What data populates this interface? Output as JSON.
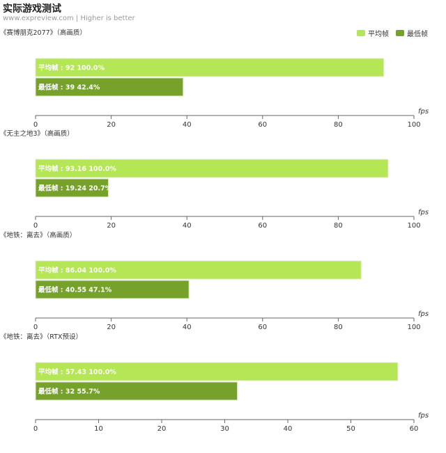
{
  "header": {
    "title": "实际游戏测试",
    "subtitle": "www.expreview.com | Higher is better"
  },
  "legend": [
    {
      "label": "平均帧",
      "color": "#b5e655"
    },
    {
      "label": "最低帧",
      "color": "#76a22c"
    }
  ],
  "axis_unit": "fps",
  "chart_data": [
    {
      "type": "bar",
      "title": "《赛博朋克2077》（高画质）",
      "xlabel": "fps",
      "xlim": [
        0,
        100
      ],
      "xticks": [
        0,
        20,
        40,
        60,
        80,
        100
      ],
      "bars": [
        {
          "name": "平均帧",
          "value": 92,
          "percent": "100.0%",
          "label": "平均帧 : 92  100.0%"
        },
        {
          "name": "最低帧",
          "value": 39,
          "percent": "42.4%",
          "label": "最低帧 : 39  42.4%"
        }
      ]
    },
    {
      "type": "bar",
      "title": "《无主之地3》（高画质）",
      "xlabel": "fps",
      "xlim": [
        0,
        100
      ],
      "xticks": [
        0,
        20,
        40,
        60,
        80,
        100
      ],
      "bars": [
        {
          "name": "平均帧",
          "value": 93.16,
          "percent": "100.0%",
          "label": "平均帧 : 93.16  100.0%"
        },
        {
          "name": "最低帧",
          "value": 19.24,
          "percent": "20.7%",
          "label": "最低帧 : 19.24  20.7%"
        }
      ]
    },
    {
      "type": "bar",
      "title": "《地铁：离去》（高画质）",
      "xlabel": "fps",
      "xlim": [
        0,
        100
      ],
      "xticks": [
        0,
        20,
        40,
        60,
        80,
        100
      ],
      "bars": [
        {
          "name": "平均帧",
          "value": 86.04,
          "percent": "100.0%",
          "label": "平均帧 : 86.04  100.0%"
        },
        {
          "name": "最低帧",
          "value": 40.55,
          "percent": "47.1%",
          "label": "最低帧 : 40.55  47.1%"
        }
      ]
    },
    {
      "type": "bar",
      "title": "《地铁：离去》（RTX预设）",
      "xlabel": "fps",
      "xlim": [
        0,
        60
      ],
      "xticks": [
        0,
        10,
        20,
        30,
        40,
        50,
        60
      ],
      "bars": [
        {
          "name": "平均帧",
          "value": 57.43,
          "percent": "100.0%",
          "label": "平均帧 : 57.43  100.0%"
        },
        {
          "name": "最低帧",
          "value": 32,
          "percent": "55.7%",
          "label": "最低帧 : 32  55.7%"
        }
      ]
    }
  ]
}
